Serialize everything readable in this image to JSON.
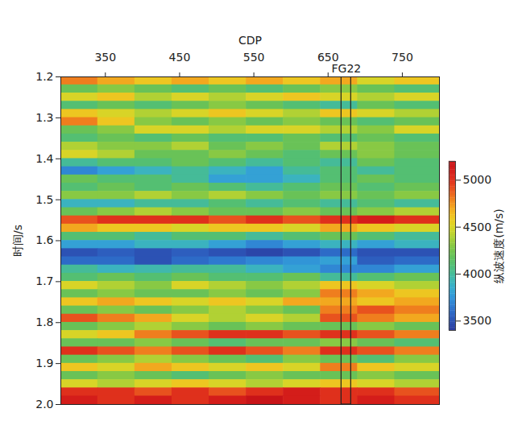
{
  "chart_data": {
    "type": "heatmap",
    "x_label": "CDP",
    "y_label": "时间/s",
    "xlim": [
      290,
      800
    ],
    "xticks": [
      350,
      450,
      550,
      650,
      750
    ],
    "ylim": [
      1.2,
      2.0
    ],
    "yticks": [
      1.2,
      1.3,
      1.4,
      1.5,
      1.6,
      1.7,
      1.8,
      1.9,
      {
        "value": 2,
        "label": "2.0"
      }
    ],
    "x_edges": [
      290,
      340,
      390,
      440,
      490,
      540,
      590,
      640,
      690,
      740,
      800
    ],
    "y_edges": [
      1.2,
      1.22,
      1.24,
      1.26,
      1.28,
      1.3,
      1.32,
      1.34,
      1.36,
      1.38,
      1.4,
      1.42,
      1.44,
      1.46,
      1.48,
      1.5,
      1.52,
      1.54,
      1.56,
      1.58,
      1.6,
      1.62,
      1.64,
      1.66,
      1.68,
      1.7,
      1.72,
      1.74,
      1.76,
      1.78,
      1.8,
      1.82,
      1.84,
      1.86,
      1.88,
      1.9,
      1.92,
      1.94,
      1.96,
      1.98,
      2.0
    ],
    "cells": [
      [
        4800,
        4700,
        4600,
        4700,
        4600,
        4700,
        4600,
        4700,
        4500,
        4600
      ],
      [
        4200,
        4300,
        4200,
        4100,
        4200,
        4100,
        4200,
        4300,
        4200,
        4100
      ],
      [
        4500,
        4600,
        4400,
        4500,
        4400,
        4500,
        4600,
        4500,
        4400,
        4500
      ],
      [
        4100,
        4200,
        4100,
        4200,
        4300,
        4200,
        4100,
        4000,
        4200,
        4100
      ],
      [
        4600,
        4500,
        4400,
        4500,
        4600,
        4500,
        4400,
        4600,
        4500,
        4400
      ],
      [
        4800,
        4600,
        4300,
        4200,
        4300,
        4200,
        4300,
        4200,
        4100,
        4200
      ],
      [
        4200,
        4300,
        4500,
        4500,
        4400,
        4500,
        4500,
        4400,
        4300,
        4500
      ],
      [
        4100,
        4200,
        4100,
        4200,
        4100,
        4100,
        4200,
        4100,
        4200,
        4100
      ],
      [
        4400,
        4300,
        4300,
        4400,
        4200,
        4300,
        4200,
        4400,
        4300,
        4200
      ],
      [
        4500,
        4400,
        4200,
        4200,
        4300,
        4200,
        4100,
        4200,
        4300,
        4200
      ],
      [
        4000,
        4100,
        4100,
        4200,
        4100,
        4000,
        4100,
        4000,
        4200,
        4100
      ],
      [
        3700,
        3800,
        3900,
        4000,
        3900,
        3800,
        4000,
        4100,
        4000,
        4100
      ],
      [
        4200,
        4100,
        4100,
        4000,
        3800,
        3800,
        3900,
        4100,
        4200,
        4100
      ],
      [
        4100,
        4200,
        4100,
        4200,
        4100,
        4000,
        4100,
        4200,
        4100,
        4200
      ],
      [
        4300,
        4300,
        4400,
        4300,
        4400,
        4300,
        4200,
        4300,
        4200,
        4300
      ],
      [
        3900,
        3900,
        4000,
        4000,
        4100,
        4000,
        4100,
        4000,
        4100,
        4000
      ],
      [
        4200,
        4300,
        4400,
        4300,
        4200,
        4200,
        4300,
        4200,
        4300,
        4400
      ],
      [
        4900,
        5000,
        5000,
        5000,
        4900,
        5000,
        4900,
        5000,
        5100,
        5000
      ],
      [
        4700,
        4600,
        4600,
        4500,
        4600,
        4600,
        4500,
        4700,
        4600,
        4500
      ],
      [
        4100,
        4100,
        4000,
        4100,
        4100,
        4000,
        4100,
        4200,
        4100,
        4000
      ],
      [
        3800,
        3800,
        3900,
        3900,
        3800,
        3700,
        3800,
        3900,
        3800,
        3900
      ],
      [
        3500,
        3550,
        3500,
        3550,
        3500,
        3450,
        3500,
        3600,
        3500,
        3500
      ],
      [
        3600,
        3600,
        3500,
        3600,
        3650,
        3700,
        3750,
        3800,
        3550,
        3600
      ],
      [
        4000,
        3900,
        3950,
        4000,
        4000,
        3900,
        3800,
        3700,
        3700,
        3800
      ],
      [
        4100,
        4200,
        4100,
        4200,
        4100,
        4100,
        4200,
        4000,
        4100,
        4200
      ],
      [
        4500,
        4400,
        4300,
        4500,
        4400,
        4300,
        4400,
        4600,
        4500,
        4400
      ],
      [
        4200,
        4300,
        4200,
        4200,
        4300,
        4200,
        4300,
        4800,
        4700,
        4600
      ],
      [
        4600,
        4700,
        4600,
        4500,
        4600,
        4500,
        4700,
        4700,
        4600,
        4700
      ],
      [
        4200,
        4300,
        4200,
        4300,
        4400,
        4300,
        4200,
        4800,
        4900,
        4800
      ],
      [
        4900,
        4800,
        4700,
        4500,
        4400,
        4500,
        4400,
        4900,
        4800,
        4700
      ],
      [
        4200,
        4300,
        4400,
        4300,
        4200,
        4300,
        4200,
        4200,
        4300,
        4200
      ],
      [
        4500,
        4600,
        4800,
        4900,
        5000,
        5000,
        4900,
        5000,
        4900,
        4800
      ],
      [
        4200,
        4200,
        4300,
        4200,
        4100,
        4200,
        4200,
        4300,
        4200,
        4100
      ],
      [
        5000,
        4900,
        4800,
        4900,
        5000,
        4900,
        4800,
        5000,
        4900,
        4800
      ],
      [
        4200,
        4300,
        4400,
        4300,
        4200,
        4100,
        4300,
        4200,
        4100,
        4300
      ],
      [
        4600,
        4500,
        4700,
        4600,
        4500,
        4600,
        4500,
        4800,
        4600,
        4500
      ],
      [
        4200,
        4300,
        4200,
        4100,
        4200,
        4300,
        4200,
        4200,
        4300,
        4200
      ],
      [
        4500,
        4400,
        4500,
        4600,
        4500,
        4400,
        4500,
        4600,
        4500,
        4400
      ],
      [
        5000,
        5000,
        4900,
        5000,
        4900,
        5000,
        5100,
        5000,
        5000,
        4900
      ],
      [
        5100,
        5000,
        5100,
        5000,
        5100,
        5200,
        5100,
        5000,
        5100,
        5000
      ]
    ],
    "colorbar": {
      "label": "纵波速度(m/s)",
      "range": [
        3400,
        5200
      ],
      "ticks": [
        3500,
        4000,
        4500,
        5000
      ]
    },
    "annotations": [
      {
        "text": "FG22",
        "x": [
          668,
          681
        ]
      }
    ]
  }
}
